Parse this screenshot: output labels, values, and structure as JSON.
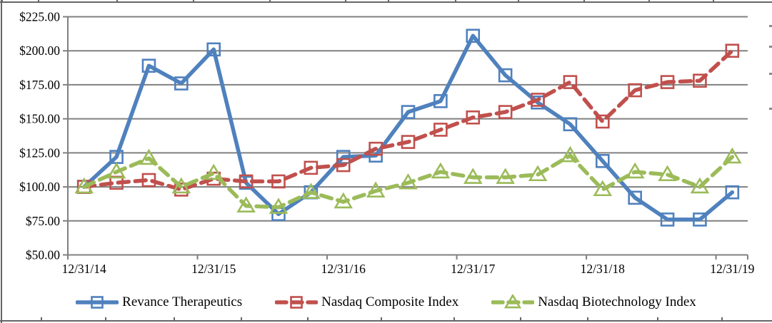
{
  "chart_data": {
    "type": "line",
    "title": "",
    "categories": [
      "12/31/14",
      "3/31/15",
      "6/30/15",
      "9/30/15",
      "12/31/15",
      "3/31/16",
      "6/30/16",
      "9/30/16",
      "12/31/16",
      "3/31/17",
      "6/30/17",
      "9/30/17",
      "12/31/17",
      "3/31/18",
      "6/30/18",
      "9/30/18",
      "12/31/18",
      "3/31/19",
      "6/30/19",
      "9/30/19",
      "12/31/19"
    ],
    "x_tick_labels": [
      "12/31/14",
      "12/31/15",
      "12/31/16",
      "12/31/17",
      "12/31/18",
      "12/31/19"
    ],
    "x_label_every_n_points": 4,
    "y_tick_labels": [
      "$225.00",
      "$200.00",
      "$175.00",
      "$150.00",
      "$125.00",
      "$100.00",
      "$75.00",
      "$50.00"
    ],
    "y_axis": {
      "min": 50,
      "max": 225,
      "step": 25,
      "unit_prefix": "$"
    },
    "grid": true,
    "gridline_color": "#808080",
    "axis_text_color": "#000000",
    "legend_position": "bottom",
    "series": [
      {
        "name": "Revance Therapeutics",
        "color": "#4F81BD",
        "marker": "square",
        "line_style": "solid",
        "values": [
          100,
          122,
          189,
          176,
          201,
          103,
          80,
          96,
          122,
          123,
          155,
          163,
          211,
          182,
          162,
          146,
          119,
          92,
          76,
          76,
          96
        ]
      },
      {
        "name": "Nasdaq Composite Index",
        "color": "#C0504D",
        "marker": "square",
        "line_style": "dashed",
        "values": [
          100,
          103,
          105,
          98,
          106,
          104,
          104,
          114,
          116,
          128,
          133,
          142,
          151,
          155,
          164,
          177,
          148,
          171,
          177,
          178,
          200
        ]
      },
      {
        "name": "Nasdaq Biotechnology Index",
        "color": "#9BBB59",
        "marker": "triangle",
        "line_style": "dashed",
        "values": [
          100,
          111,
          121,
          100,
          110,
          86,
          85,
          96,
          89,
          97,
          103,
          111,
          107,
          107,
          109,
          123,
          98,
          111,
          109,
          100,
          122
        ]
      }
    ]
  }
}
